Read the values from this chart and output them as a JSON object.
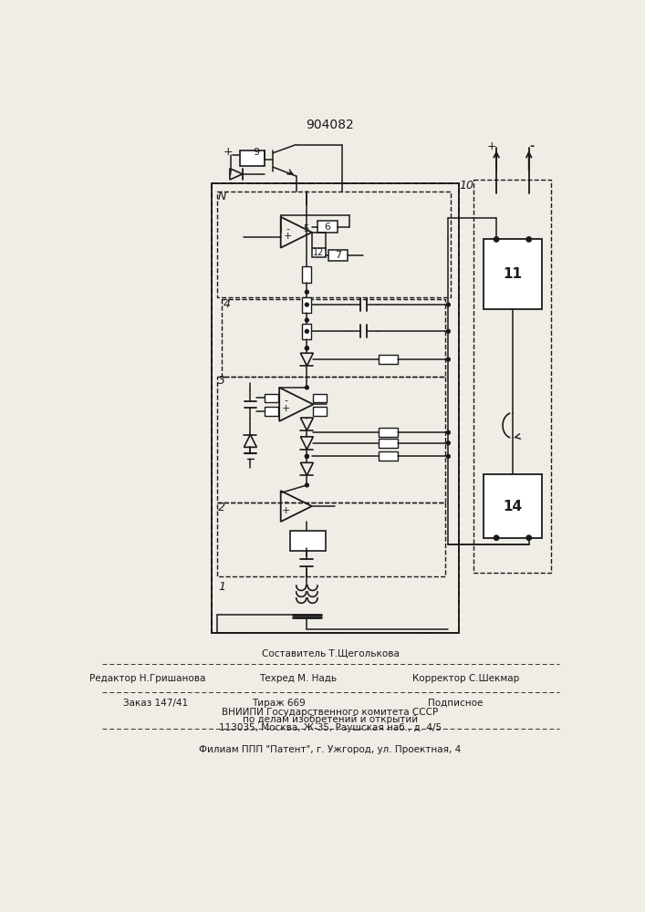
{
  "title": "904082",
  "bg": "#f0ede6",
  "lc": "#1a1a1a",
  "tc": "#1a1a1a",
  "footer1_center": "Составитель Т.Щеголькова",
  "footer2_l": "Редактор Н.Гришанова",
  "footer2_c": "Техред М. Надь",
  "footer2_r": "Корректор С.Шекмар",
  "footer3_l": "Заказ 147/41",
  "footer3_c": "Тираж 669",
  "footer3_r": "Подписное",
  "footer4": "ВНИИПИ Государственного комитета СССР",
  "footer5": "по делам изобретений и открытий",
  "footer6": "113035, Москва, Ж-35, Раушская наб., д. 4/5",
  "footer7": "Филиам ППП \"Патент\", г. Ужгород, ул. Проектная, 4"
}
